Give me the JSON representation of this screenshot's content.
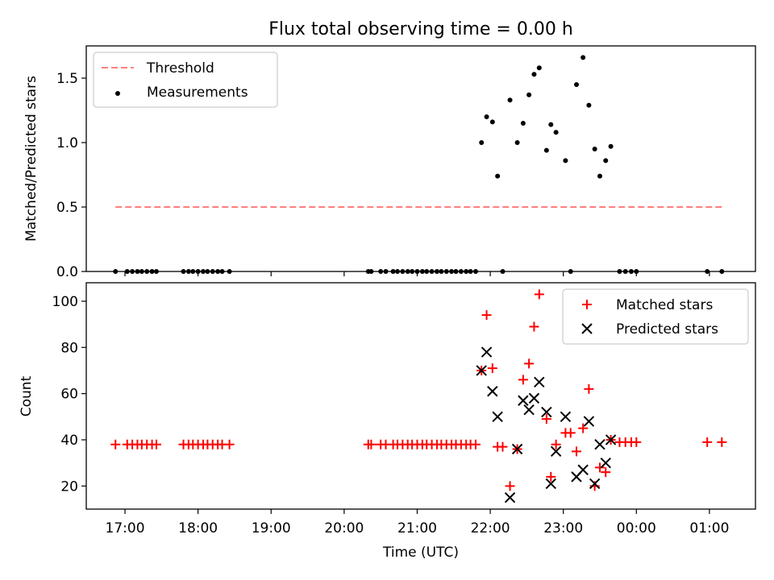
{
  "chart_data": [
    {
      "type": "scatter",
      "title": "Flux total observing time = 0.00 h",
      "xlabel": "",
      "ylabel": "Matched/Predicted stars",
      "ylim": [
        0,
        1.75
      ],
      "yticks": [
        0.0,
        0.5,
        1.0,
        1.5
      ],
      "ytick_labels": [
        "0.0",
        "0.5",
        "1.0",
        "1.5"
      ],
      "xlim_hours": [
        16.47,
        25.63
      ],
      "legend_position": "top-left",
      "series": [
        {
          "name": "Threshold",
          "kind": "dashed-line",
          "color": "#ff7f7f",
          "x": [
            16.87,
            25.17
          ],
          "y": [
            0.5,
            0.5
          ]
        },
        {
          "name": "Measurements",
          "kind": "dot",
          "color": "#000000",
          "x": [
            16.87,
            17.03,
            17.1,
            17.17,
            17.23,
            17.3,
            17.37,
            17.43,
            17.8,
            17.87,
            17.93,
            18.0,
            18.07,
            18.13,
            18.2,
            18.27,
            18.33,
            18.43,
            20.33,
            20.37,
            20.5,
            20.57,
            20.67,
            20.73,
            20.8,
            20.87,
            20.93,
            21.0,
            21.07,
            21.13,
            21.2,
            21.27,
            21.33,
            21.4,
            21.47,
            21.53,
            21.6,
            21.67,
            21.73,
            21.8,
            21.88,
            21.95,
            22.03,
            22.1,
            22.17,
            22.27,
            22.37,
            22.45,
            22.53,
            22.6,
            22.67,
            22.77,
            22.83,
            22.9,
            23.03,
            23.1,
            23.18,
            23.27,
            23.35,
            23.43,
            23.5,
            23.58,
            23.65,
            23.77,
            23.85,
            23.93,
            24.0,
            24.97,
            25.17
          ],
          "y": [
            0,
            0,
            0,
            0,
            0,
            0,
            0,
            0,
            0,
            0,
            0,
            0,
            0,
            0,
            0,
            0,
            0,
            0,
            0,
            0,
            0,
            0,
            0,
            0,
            0,
            0,
            0,
            0,
            0,
            0,
            0,
            0,
            0,
            0,
            0,
            0,
            0,
            0,
            0,
            0,
            1.0,
            1.2,
            1.16,
            0.74,
            0,
            1.33,
            1.0,
            1.15,
            1.37,
            1.53,
            1.58,
            0.94,
            1.14,
            1.08,
            0.86,
            0,
            1.45,
            1.66,
            1.29,
            0.95,
            0.74,
            0.86,
            0.97,
            0,
            0,
            0,
            0,
            0,
            0
          ]
        }
      ]
    },
    {
      "type": "scatter",
      "title": "",
      "xlabel": "Time (UTC)",
      "ylabel": "Count",
      "ylim": [
        10,
        108
      ],
      "yticks": [
        20,
        40,
        60,
        80,
        100
      ],
      "ytick_labels": [
        "20",
        "40",
        "60",
        "80",
        "100"
      ],
      "xlim_hours": [
        16.47,
        25.63
      ],
      "xticks_hours": [
        17,
        18,
        19,
        20,
        21,
        22,
        23,
        24,
        25
      ],
      "xtick_labels": [
        "17:00",
        "18:00",
        "19:00",
        "20:00",
        "21:00",
        "22:00",
        "23:00",
        "00:00",
        "01:00"
      ],
      "legend_position": "top-right",
      "series": [
        {
          "name": "Matched stars",
          "kind": "plus",
          "color": "#ff0000",
          "x": [
            16.87,
            17.03,
            17.1,
            17.17,
            17.23,
            17.3,
            17.37,
            17.43,
            17.8,
            17.87,
            17.93,
            18.0,
            18.07,
            18.13,
            18.2,
            18.27,
            18.33,
            18.43,
            20.33,
            20.37,
            20.5,
            20.57,
            20.67,
            20.73,
            20.8,
            20.87,
            20.93,
            21.0,
            21.07,
            21.13,
            21.2,
            21.27,
            21.33,
            21.4,
            21.47,
            21.53,
            21.6,
            21.67,
            21.73,
            21.8,
            21.88,
            21.95,
            22.03,
            22.1,
            22.17,
            22.27,
            22.37,
            22.45,
            22.53,
            22.6,
            22.67,
            22.77,
            22.83,
            22.9,
            23.03,
            23.1,
            23.18,
            23.27,
            23.35,
            23.43,
            23.5,
            23.58,
            23.65,
            23.77,
            23.85,
            23.93,
            24.0,
            24.97,
            25.17
          ],
          "y": [
            38,
            38,
            38,
            38,
            38,
            38,
            38,
            38,
            38,
            38,
            38,
            38,
            38,
            38,
            38,
            38,
            38,
            38,
            38,
            38,
            38,
            38,
            38,
            38,
            38,
            38,
            38,
            38,
            38,
            38,
            38,
            38,
            38,
            38,
            38,
            38,
            38,
            38,
            38,
            38,
            70,
            94,
            71,
            37,
            37,
            20,
            36,
            66,
            73,
            89,
            103,
            49,
            24,
            38,
            43,
            43,
            35,
            45,
            62,
            20,
            28,
            26,
            40,
            39,
            39,
            39,
            39,
            39,
            39
          ]
        },
        {
          "name": "Predicted stars",
          "kind": "x",
          "color": "#000000",
          "x": [
            21.88,
            21.95,
            22.03,
            22.1,
            22.27,
            22.37,
            22.45,
            22.53,
            22.6,
            22.67,
            22.77,
            22.83,
            22.9,
            23.03,
            23.18,
            23.27,
            23.35,
            23.43,
            23.5,
            23.58,
            23.65
          ],
          "y": [
            70,
            78,
            61,
            50,
            15,
            36,
            57,
            53,
            58,
            65,
            52,
            21,
            35,
            50,
            24,
            27,
            48,
            21,
            38,
            30,
            40
          ]
        }
      ]
    }
  ]
}
